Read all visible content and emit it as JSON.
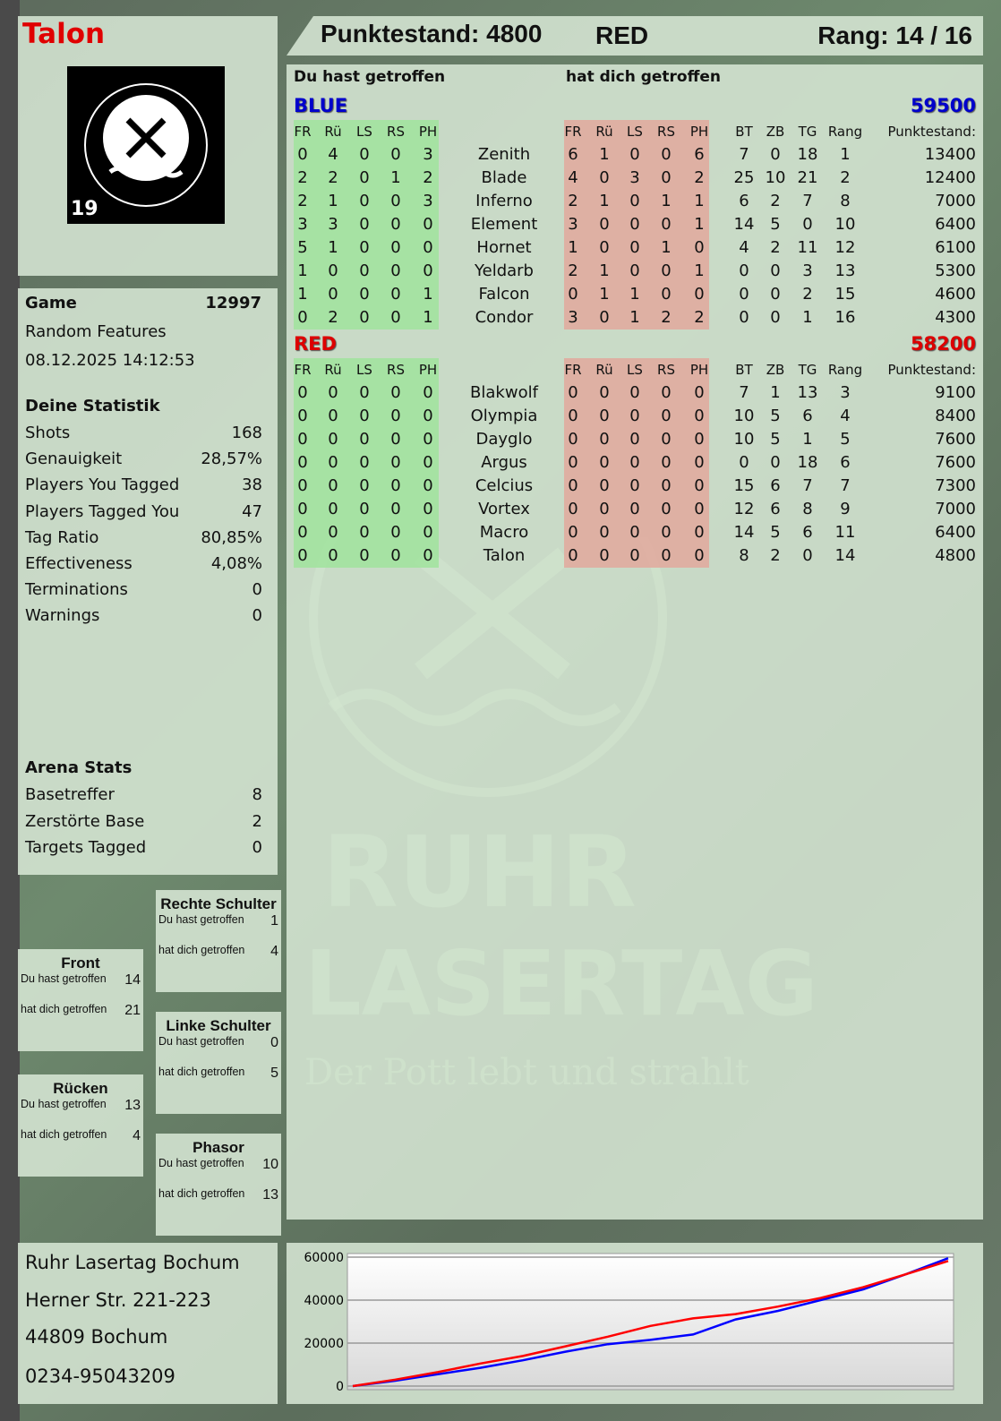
{
  "player": {
    "name": "Talon",
    "logo_text": "RUHR LASERTAG",
    "logo_number": "19"
  },
  "header": {
    "score_label": "Punktestand: 4800",
    "team": "RED",
    "rank": "Rang: 14 / 16"
  },
  "game": {
    "label": "Game",
    "number": "12997",
    "mode": "Random Features",
    "datetime": "08.12.2025 14:12:53"
  },
  "stats": {
    "title": "Deine Statistik",
    "items": [
      {
        "label": "Shots",
        "value": "168"
      },
      {
        "label": "Genauigkeit",
        "value": "28,57%"
      },
      {
        "label": "Players You Tagged",
        "value": "38"
      },
      {
        "label": "Players Tagged You",
        "value": "47"
      },
      {
        "label": "Tag Ratio",
        "value": "80,85%"
      },
      {
        "label": "Effectiveness",
        "value": "4,08%"
      },
      {
        "label": "Terminations",
        "value": "0"
      },
      {
        "label": "Warnings",
        "value": "0"
      }
    ]
  },
  "arena": {
    "title": "Arena Stats",
    "items": [
      {
        "label": "Basetreffer",
        "value": "8"
      },
      {
        "label": "Zerstörte Base",
        "value": "2"
      },
      {
        "label": "Targets Tagged",
        "value": "0"
      }
    ]
  },
  "zones": [
    {
      "title": "Rechte Schulter",
      "you_hit_label": "Du hast getroffen",
      "you_hit": "1",
      "hit_you_label": "hat dich getroffen",
      "hit_you": "4"
    },
    {
      "title": "Front",
      "you_hit_label": "Du hast getroffen",
      "you_hit": "14",
      "hit_you_label": "hat dich getroffen",
      "hit_you": "21"
    },
    {
      "title": "Linke Schulter",
      "you_hit_label": "Du hast getroffen",
      "you_hit": "0",
      "hit_you_label": "hat dich getroffen",
      "hit_you": "5"
    },
    {
      "title": "Rücken",
      "you_hit_label": "Du hast getroffen",
      "you_hit": "13",
      "hit_you_label": "hat dich getroffen",
      "hit_you": "4"
    },
    {
      "title": "Phasor",
      "you_hit_label": "Du hast getroffen",
      "you_hit": "10",
      "hit_you_label": "hat dich getroffen",
      "hit_you": "13"
    }
  ],
  "address": [
    "Ruhr Lasertag Bochum",
    "Herner Str. 221-223",
    "44809 Bochum",
    "0234-95043209"
  ],
  "watermark": {
    "line1": "RUHR",
    "line2": "LASERTAG",
    "slogan": "Der Pott lebt und strahlt"
  },
  "table": {
    "you_hit_label": "Du hast getroffen",
    "hit_you_label": "hat dich getroffen",
    "hit_columns": [
      "FR",
      "Rü",
      "LS",
      "RS",
      "PH"
    ],
    "stat_columns": [
      "BT",
      "ZB",
      "TG",
      "Rang",
      "Punktestand:"
    ],
    "teams": [
      {
        "name": "BLUE",
        "score": "59500",
        "color": "#0000cc",
        "players": [
          {
            "you_hit": [
              0,
              4,
              0,
              0,
              3
            ],
            "name": "Zenith",
            "hit_you": [
              6,
              1,
              0,
              0,
              6
            ],
            "stats": [
              7,
              0,
              18,
              1,
              13400
            ]
          },
          {
            "you_hit": [
              2,
              2,
              0,
              1,
              2
            ],
            "name": "Blade",
            "hit_you": [
              4,
              0,
              3,
              0,
              2
            ],
            "stats": [
              25,
              10,
              21,
              2,
              12400
            ]
          },
          {
            "you_hit": [
              2,
              1,
              0,
              0,
              3
            ],
            "name": "Inferno",
            "hit_you": [
              2,
              1,
              0,
              1,
              1
            ],
            "stats": [
              6,
              2,
              7,
              8,
              7000
            ]
          },
          {
            "you_hit": [
              3,
              3,
              0,
              0,
              0
            ],
            "name": "Element",
            "hit_you": [
              3,
              0,
              0,
              0,
              1
            ],
            "stats": [
              14,
              5,
              0,
              10,
              6400
            ]
          },
          {
            "you_hit": [
              5,
              1,
              0,
              0,
              0
            ],
            "name": "Hornet",
            "hit_you": [
              1,
              0,
              0,
              1,
              0
            ],
            "stats": [
              4,
              2,
              11,
              12,
              6100
            ]
          },
          {
            "you_hit": [
              1,
              0,
              0,
              0,
              0
            ],
            "name": "Yeldarb",
            "hit_you": [
              2,
              1,
              0,
              0,
              1
            ],
            "stats": [
              0,
              0,
              3,
              13,
              5300
            ]
          },
          {
            "you_hit": [
              1,
              0,
              0,
              0,
              1
            ],
            "name": "Falcon",
            "hit_you": [
              0,
              1,
              1,
              0,
              0
            ],
            "stats": [
              0,
              0,
              2,
              15,
              4600
            ]
          },
          {
            "you_hit": [
              0,
              2,
              0,
              0,
              1
            ],
            "name": "Condor",
            "hit_you": [
              3,
              0,
              1,
              2,
              2
            ],
            "stats": [
              0,
              0,
              1,
              16,
              4300
            ]
          }
        ]
      },
      {
        "name": "RED",
        "score": "58200",
        "color": "#dd0000",
        "players": [
          {
            "you_hit": [
              0,
              0,
              0,
              0,
              0
            ],
            "name": "Blakwolf",
            "hit_you": [
              0,
              0,
              0,
              0,
              0
            ],
            "stats": [
              7,
              1,
              13,
              3,
              9100
            ]
          },
          {
            "you_hit": [
              0,
              0,
              0,
              0,
              0
            ],
            "name": "Olympia",
            "hit_you": [
              0,
              0,
              0,
              0,
              0
            ],
            "stats": [
              10,
              5,
              6,
              4,
              8400
            ]
          },
          {
            "you_hit": [
              0,
              0,
              0,
              0,
              0
            ],
            "name": "Dayglo",
            "hit_you": [
              0,
              0,
              0,
              0,
              0
            ],
            "stats": [
              10,
              5,
              1,
              5,
              7600
            ]
          },
          {
            "you_hit": [
              0,
              0,
              0,
              0,
              0
            ],
            "name": "Argus",
            "hit_you": [
              0,
              0,
              0,
              0,
              0
            ],
            "stats": [
              0,
              0,
              18,
              6,
              7600
            ]
          },
          {
            "you_hit": [
              0,
              0,
              0,
              0,
              0
            ],
            "name": "Celcius",
            "hit_you": [
              0,
              0,
              0,
              0,
              0
            ],
            "stats": [
              15,
              6,
              7,
              7,
              7300
            ]
          },
          {
            "you_hit": [
              0,
              0,
              0,
              0,
              0
            ],
            "name": "Vortex",
            "hit_you": [
              0,
              0,
              0,
              0,
              0
            ],
            "stats": [
              12,
              6,
              8,
              9,
              7000
            ]
          },
          {
            "you_hit": [
              0,
              0,
              0,
              0,
              0
            ],
            "name": "Macro",
            "hit_you": [
              0,
              0,
              0,
              0,
              0
            ],
            "stats": [
              14,
              5,
              6,
              11,
              6400
            ]
          },
          {
            "you_hit": [
              0,
              0,
              0,
              0,
              0
            ],
            "name": "Talon",
            "hit_you": [
              0,
              0,
              0,
              0,
              0
            ],
            "stats": [
              8,
              2,
              0,
              14,
              4800
            ]
          }
        ]
      }
    ]
  },
  "colors": {
    "you_hit_bg": "#9ee39a",
    "hit_you_bg": "#e3a59a",
    "panel": "#d6e6d4"
  },
  "chart_data": {
    "type": "line",
    "ylim": [
      0,
      60000
    ],
    "yticks": [
      0,
      20000,
      40000,
      60000
    ],
    "grid": true,
    "x": [
      0,
      1,
      2,
      3,
      4,
      5,
      6,
      7,
      8,
      9,
      10,
      11,
      12,
      13,
      14
    ],
    "series": [
      {
        "color": "#0000ff",
        "values": [
          0,
          2500,
          5500,
          8500,
          12000,
          16000,
          19500,
          21500,
          24000,
          31000,
          35000,
          40000,
          45000,
          52000,
          59500
        ]
      },
      {
        "color": "#ff0000",
        "values": [
          0,
          3000,
          6500,
          10500,
          14000,
          18500,
          23000,
          28000,
          31500,
          33500,
          37000,
          41000,
          46000,
          52000,
          58200
        ]
      }
    ]
  }
}
